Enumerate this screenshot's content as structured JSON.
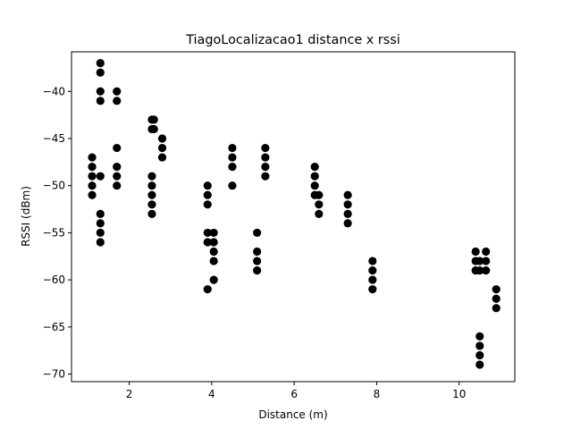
{
  "chart_data": {
    "type": "scatter",
    "title": "TiagoLocalizacao1 distance x rssi",
    "xlabel": "Distance (m)",
    "ylabel": "RSSI (dBm)",
    "xlim": [
      0.6,
      11.35
    ],
    "ylim": [
      -70.8,
      -35.8
    ],
    "xticks": [
      2,
      4,
      6,
      8,
      10
    ],
    "yticks": [
      -40,
      -45,
      -50,
      -55,
      -60,
      -65,
      -70
    ],
    "grid": false,
    "marker_color": "#000000",
    "points": [
      {
        "x": 1.1,
        "y": -47
      },
      {
        "x": 1.1,
        "y": -48
      },
      {
        "x": 1.1,
        "y": -49
      },
      {
        "x": 1.1,
        "y": -50
      },
      {
        "x": 1.1,
        "y": -51
      },
      {
        "x": 1.3,
        "y": -37
      },
      {
        "x": 1.3,
        "y": -38
      },
      {
        "x": 1.3,
        "y": -40
      },
      {
        "x": 1.3,
        "y": -41
      },
      {
        "x": 1.3,
        "y": -49
      },
      {
        "x": 1.3,
        "y": -53
      },
      {
        "x": 1.3,
        "y": -54
      },
      {
        "x": 1.3,
        "y": -55
      },
      {
        "x": 1.3,
        "y": -56
      },
      {
        "x": 1.7,
        "y": -40
      },
      {
        "x": 1.7,
        "y": -41
      },
      {
        "x": 1.7,
        "y": -46
      },
      {
        "x": 1.7,
        "y": -48
      },
      {
        "x": 1.7,
        "y": -49
      },
      {
        "x": 1.7,
        "y": -50
      },
      {
        "x": 2.55,
        "y": -43
      },
      {
        "x": 2.55,
        "y": -44
      },
      {
        "x": 2.55,
        "y": -49
      },
      {
        "x": 2.55,
        "y": -50
      },
      {
        "x": 2.55,
        "y": -51
      },
      {
        "x": 2.55,
        "y": -52
      },
      {
        "x": 2.55,
        "y": -53
      },
      {
        "x": 2.6,
        "y": -43
      },
      {
        "x": 2.6,
        "y": -44
      },
      {
        "x": 2.8,
        "y": -45
      },
      {
        "x": 2.8,
        "y": -46
      },
      {
        "x": 2.8,
        "y": -47
      },
      {
        "x": 3.9,
        "y": -50
      },
      {
        "x": 3.9,
        "y": -51
      },
      {
        "x": 3.9,
        "y": -52
      },
      {
        "x": 3.9,
        "y": -55
      },
      {
        "x": 3.9,
        "y": -56
      },
      {
        "x": 3.9,
        "y": -61
      },
      {
        "x": 4.05,
        "y": -55
      },
      {
        "x": 4.05,
        "y": -56
      },
      {
        "x": 4.05,
        "y": -57
      },
      {
        "x": 4.05,
        "y": -58
      },
      {
        "x": 4.05,
        "y": -60
      },
      {
        "x": 4.5,
        "y": -46
      },
      {
        "x": 4.5,
        "y": -47
      },
      {
        "x": 4.5,
        "y": -48
      },
      {
        "x": 4.5,
        "y": -50
      },
      {
        "x": 5.1,
        "y": -55
      },
      {
        "x": 5.1,
        "y": -57
      },
      {
        "x": 5.1,
        "y": -58
      },
      {
        "x": 5.1,
        "y": -59
      },
      {
        "x": 5.3,
        "y": -46
      },
      {
        "x": 5.3,
        "y": -47
      },
      {
        "x": 5.3,
        "y": -48
      },
      {
        "x": 5.3,
        "y": -49
      },
      {
        "x": 6.5,
        "y": -48
      },
      {
        "x": 6.5,
        "y": -49
      },
      {
        "x": 6.5,
        "y": -50
      },
      {
        "x": 6.5,
        "y": -51
      },
      {
        "x": 6.6,
        "y": -51
      },
      {
        "x": 6.6,
        "y": -52
      },
      {
        "x": 6.6,
        "y": -53
      },
      {
        "x": 7.3,
        "y": -51
      },
      {
        "x": 7.3,
        "y": -52
      },
      {
        "x": 7.3,
        "y": -53
      },
      {
        "x": 7.3,
        "y": -54
      },
      {
        "x": 7.9,
        "y": -58
      },
      {
        "x": 7.9,
        "y": -59
      },
      {
        "x": 7.9,
        "y": -60
      },
      {
        "x": 7.9,
        "y": -61
      },
      {
        "x": 10.4,
        "y": -57
      },
      {
        "x": 10.4,
        "y": -58
      },
      {
        "x": 10.4,
        "y": -59
      },
      {
        "x": 10.5,
        "y": -58
      },
      {
        "x": 10.5,
        "y": -59
      },
      {
        "x": 10.5,
        "y": -66
      },
      {
        "x": 10.5,
        "y": -67
      },
      {
        "x": 10.5,
        "y": -68
      },
      {
        "x": 10.5,
        "y": -69
      },
      {
        "x": 10.65,
        "y": -57
      },
      {
        "x": 10.65,
        "y": -58
      },
      {
        "x": 10.65,
        "y": -59
      },
      {
        "x": 10.9,
        "y": -61
      },
      {
        "x": 10.9,
        "y": -62
      },
      {
        "x": 10.9,
        "y": -63
      }
    ]
  }
}
